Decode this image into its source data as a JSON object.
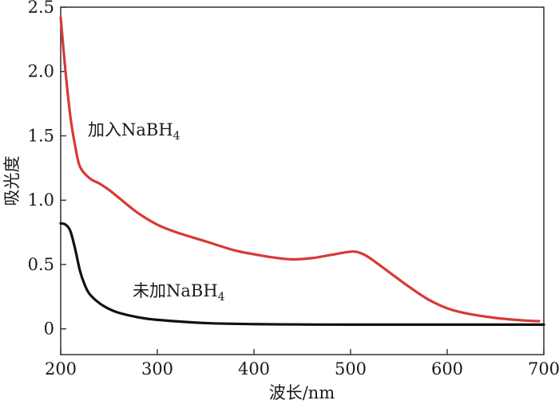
{
  "chart_data": {
    "type": "line",
    "xlabel": "波长/nm",
    "ylabel": "吸光度",
    "xlim": [
      200,
      700
    ],
    "ylim": [
      -0.2,
      2.5
    ],
    "xticks": [
      "200",
      "300",
      "400",
      "500",
      "600",
      "700"
    ],
    "yticks": [
      "0",
      "0.5",
      "1.0",
      "1.5",
      "2.0",
      "2.5"
    ],
    "grid": false,
    "series": [
      {
        "name": "加入NaBH4",
        "color": "#d63a36",
        "x": [
          200,
          205,
          210,
          215,
          220,
          230,
          240,
          250,
          260,
          280,
          300,
          320,
          350,
          380,
          400,
          420,
          440,
          460,
          480,
          500,
          510,
          520,
          540,
          560,
          580,
          600,
          620,
          650,
          680,
          695
        ],
        "y": [
          2.42,
          2.0,
          1.65,
          1.42,
          1.26,
          1.17,
          1.13,
          1.08,
          1.02,
          0.9,
          0.81,
          0.75,
          0.68,
          0.61,
          0.58,
          0.555,
          0.54,
          0.55,
          0.575,
          0.6,
          0.59,
          0.55,
          0.44,
          0.33,
          0.23,
          0.16,
          0.12,
          0.085,
          0.065,
          0.06
        ]
      },
      {
        "name": "未加NaBH4",
        "color": "#111111",
        "x": [
          200,
          205,
          210,
          215,
          220,
          225,
          230,
          240,
          250,
          260,
          280,
          300,
          350,
          400,
          450,
          500,
          600,
          700
        ],
        "y": [
          0.82,
          0.81,
          0.76,
          0.62,
          0.45,
          0.34,
          0.27,
          0.2,
          0.155,
          0.125,
          0.09,
          0.07,
          0.045,
          0.037,
          0.034,
          0.033,
          0.033,
          0.033
        ]
      }
    ],
    "annotations": [
      {
        "text": "加入NaBH",
        "sub": "4",
        "series": 0
      },
      {
        "text": "未加NaBH",
        "sub": "4",
        "series": 1
      }
    ]
  }
}
